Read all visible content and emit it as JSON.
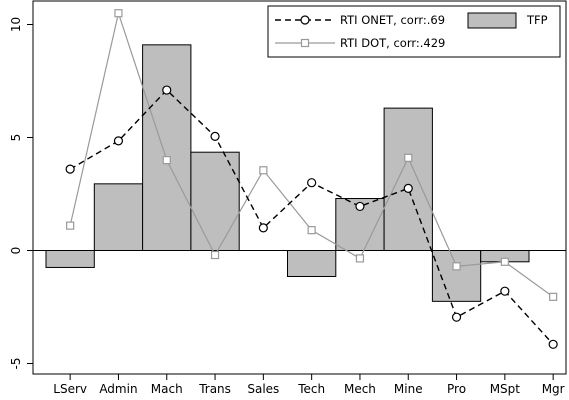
{
  "chart_data": {
    "type": "bar",
    "categories": [
      "LServ",
      "Admin",
      "Mach",
      "Trans",
      "Sales",
      "Tech",
      "Mech",
      "Mine",
      "Pro",
      "MSpt",
      "Mgr"
    ],
    "ylim": [
      -5,
      11
    ],
    "yticks": [
      -5,
      0,
      5,
      10
    ],
    "grid": false,
    "legend_position": "top-right",
    "series": [
      {
        "name": "TFP",
        "kind": "bar",
        "color": "#bebebe",
        "values": [
          -0.75,
          2.95,
          9.1,
          4.35,
          null,
          -1.15,
          2.3,
          6.3,
          -2.25,
          -0.5,
          null
        ]
      },
      {
        "name": "RTI ONET, corr:.69",
        "kind": "line",
        "style": "dashed",
        "marker": "circle",
        "color": "#000000",
        "values": [
          3.6,
          4.85,
          7.1,
          5.05,
          1.0,
          3.0,
          1.95,
          2.75,
          -2.95,
          -1.8,
          -4.15
        ]
      },
      {
        "name": "RTI DOT, corr:.429",
        "kind": "line",
        "style": "solid",
        "marker": "square",
        "color": "#9a9a9a",
        "values": [
          1.1,
          10.5,
          4.0,
          -0.2,
          3.55,
          0.9,
          -0.35,
          4.1,
          -0.7,
          -0.5,
          -2.05
        ]
      }
    ]
  }
}
